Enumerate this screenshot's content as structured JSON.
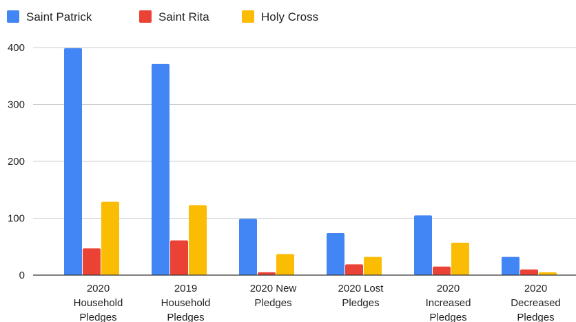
{
  "chart_data": {
    "type": "bar",
    "categories": [
      [
        "2020",
        "Household",
        "Pledges"
      ],
      [
        "2019",
        "Household",
        "Pledges"
      ],
      [
        "2020 New",
        "Pledges"
      ],
      [
        "2020 Lost",
        "Pledges"
      ],
      [
        "2020",
        "Increased",
        "Pledges"
      ],
      [
        "2020",
        "Decreased",
        "Pledges"
      ]
    ],
    "series": [
      {
        "name": "Saint Patrick",
        "color": "#4285f4",
        "values": [
          399,
          371,
          99,
          74,
          105,
          32
        ]
      },
      {
        "name": "Saint Rita",
        "color": "#ea4335",
        "values": [
          47,
          61,
          5,
          19,
          15,
          10
        ]
      },
      {
        "name": "Holy Cross",
        "color": "#fbbc04",
        "values": [
          129,
          123,
          37,
          32,
          57,
          5
        ]
      }
    ],
    "ylim": [
      0,
      400
    ],
    "yticks": [
      0,
      100,
      200,
      300,
      400
    ],
    "grid": true,
    "legend_position": "top-left",
    "title": "",
    "xlabel": "",
    "ylabel": ""
  }
}
